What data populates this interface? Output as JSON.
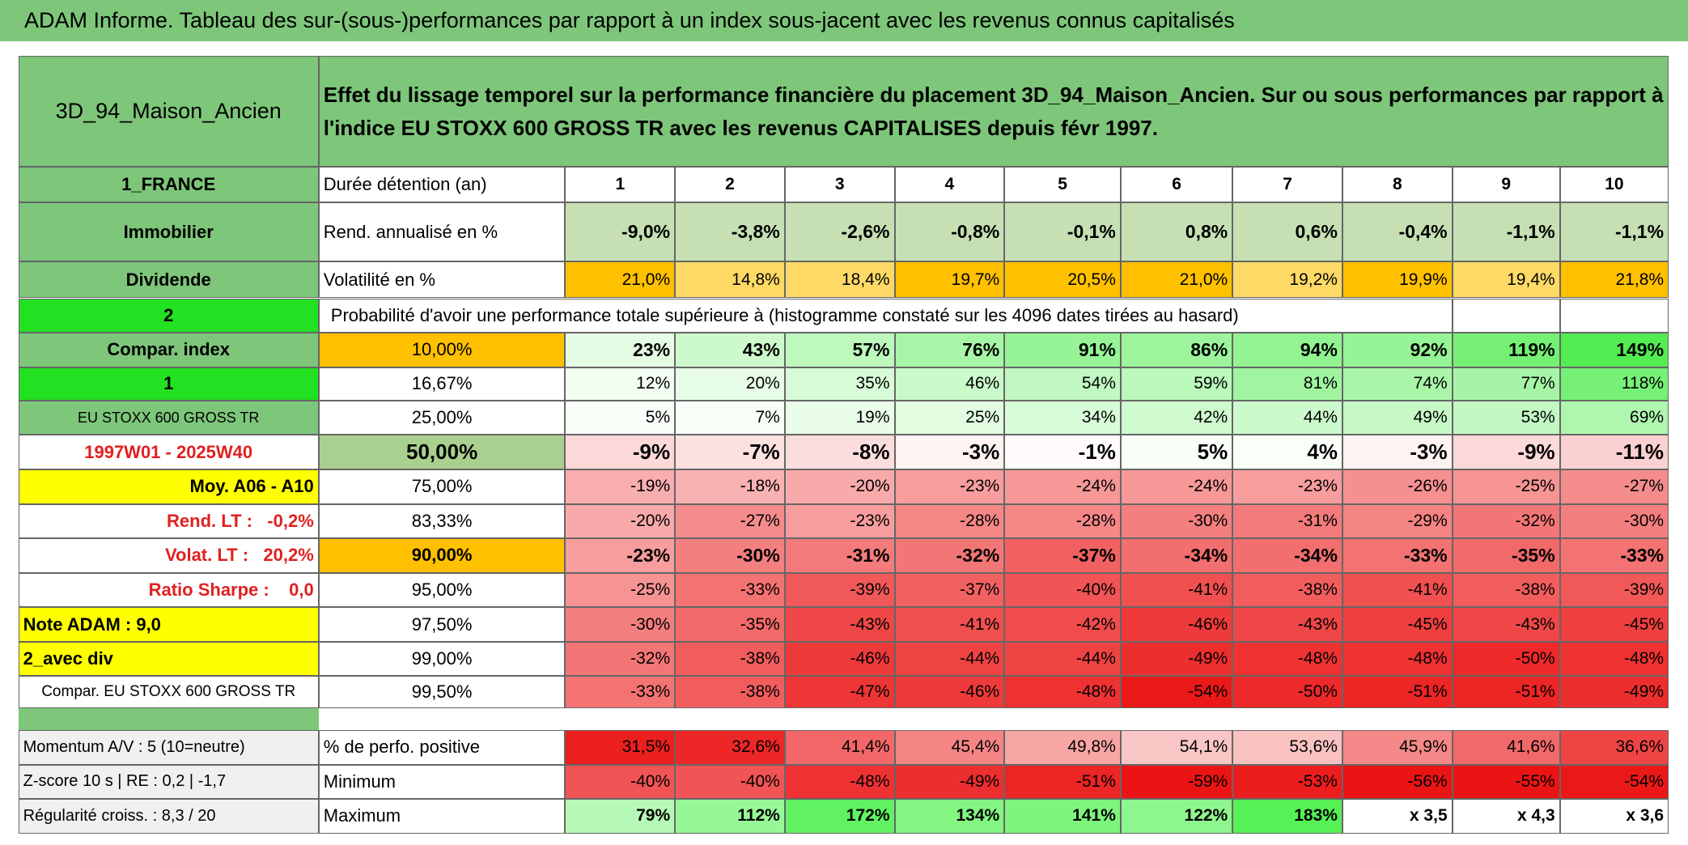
{
  "title": "ADAM Informe. Tableau des sur-(sous-)performances par rapport à un index sous-jacent avec les revenus connus capitalisés",
  "header": {
    "fund": "3D_94_Maison_Ancien",
    "description": "Effet du lissage temporel sur la performance financière du placement 3D_94_Maison_Ancien. Sur ou sous performances par rapport à l'indice EU STOXX 600 GROSS TR avec les revenus CAPITALISES depuis févr 1997."
  },
  "rows": [
    {
      "side": "1_FRANCE",
      "label": "Durée détention (an)",
      "cells": [
        "1",
        "2",
        "3",
        "4",
        "5",
        "6",
        "7",
        "8",
        "9",
        "10"
      ]
    },
    {
      "side": "Immobilier",
      "label": "Rend. annualisé en %",
      "cells": [
        "-9,0%",
        "-3,8%",
        "-2,6%",
        "-0,8%",
        "-0,1%",
        "0,8%",
        "0,6%",
        "-0,4%",
        "-1,1%",
        "-1,1%"
      ]
    },
    {
      "side": "Dividende",
      "label": "Volatilité en %",
      "cells": [
        "21,0%",
        "14,8%",
        "18,4%",
        "19,7%",
        "20,5%",
        "21,0%",
        "19,2%",
        "19,9%",
        "19,4%",
        "21,8%"
      ]
    },
    {
      "side": "2",
      "label": "Probabilité d'avoir une performance totale supérieure à (histogramme constaté sur les 4096 dates tirées au hasard)",
      "cells": []
    },
    {
      "side": "Compar. index",
      "label": "10,00%",
      "cells": [
        "23%",
        "43%",
        "57%",
        "76%",
        "91%",
        "86%",
        "94%",
        "92%",
        "119%",
        "149%"
      ]
    },
    {
      "side": "1",
      "label": "16,67%",
      "cells": [
        "12%",
        "20%",
        "35%",
        "46%",
        "54%",
        "59%",
        "81%",
        "74%",
        "77%",
        "118%"
      ]
    },
    {
      "side": "EU STOXX 600 GROSS TR",
      "label": "25,00%",
      "cells": [
        "5%",
        "7%",
        "19%",
        "25%",
        "34%",
        "42%",
        "44%",
        "49%",
        "53%",
        "69%"
      ]
    },
    {
      "side": "1997W01 - 2025W40",
      "label": "50,00%",
      "cells": [
        "-9%",
        "-7%",
        "-8%",
        "-3%",
        "-1%",
        "5%",
        "4%",
        "-3%",
        "-9%",
        "-11%"
      ]
    },
    {
      "side": "Moy. A06 - A10",
      "label": "75,00%",
      "cells": [
        "-19%",
        "-18%",
        "-20%",
        "-23%",
        "-24%",
        "-24%",
        "-23%",
        "-26%",
        "-25%",
        "-27%"
      ]
    },
    {
      "side": "Rend. LT :   -0,2%",
      "label": "83,33%",
      "cells": [
        "-20%",
        "-27%",
        "-23%",
        "-28%",
        "-28%",
        "-30%",
        "-31%",
        "-29%",
        "-32%",
        "-30%"
      ]
    },
    {
      "side": "Volat. LT :   20,2%",
      "label": "90,00%",
      "cells": [
        "-23%",
        "-30%",
        "-31%",
        "-32%",
        "-37%",
        "-34%",
        "-34%",
        "-33%",
        "-35%",
        "-33%"
      ]
    },
    {
      "side": "Ratio Sharpe :    0,0",
      "label": "95,00%",
      "cells": [
        "-25%",
        "-33%",
        "-39%",
        "-37%",
        "-40%",
        "-41%",
        "-38%",
        "-41%",
        "-38%",
        "-39%"
      ]
    },
    {
      "side": "Note ADAM : 9,0",
      "label": "97,50%",
      "cells": [
        "-30%",
        "-35%",
        "-43%",
        "-41%",
        "-42%",
        "-46%",
        "-43%",
        "-45%",
        "-43%",
        "-45%"
      ]
    },
    {
      "side": "2_avec div",
      "label": "99,00%",
      "cells": [
        "-32%",
        "-38%",
        "-46%",
        "-44%",
        "-44%",
        "-49%",
        "-48%",
        "-48%",
        "-50%",
        "-48%"
      ]
    },
    {
      "side": "Compar. EU STOXX 600 GROSS TR",
      "label": "99,50%",
      "cells": [
        "-33%",
        "-38%",
        "-47%",
        "-46%",
        "-48%",
        "-54%",
        "-50%",
        "-51%",
        "-51%",
        "-49%"
      ]
    },
    {
      "side": "Momentum A/V : 5 (10=neutre)",
      "label": "% de perfo. positive",
      "cells": [
        "31,5%",
        "32,6%",
        "41,4%",
        "45,4%",
        "49,8%",
        "54,1%",
        "53,6%",
        "45,9%",
        "41,6%",
        "36,6%"
      ]
    },
    {
      "side": "Z-score 10 s | RE : 0,2 | -1,7",
      "label": "Minimum",
      "cells": [
        "-40%",
        "-40%",
        "-48%",
        "-49%",
        "-51%",
        "-59%",
        "-53%",
        "-56%",
        "-55%",
        "-54%"
      ]
    },
    {
      "side": "Régularité croiss. : 8,3 / 20",
      "label": "Maximum",
      "cells": [
        "79%",
        "112%",
        "172%",
        "134%",
        "141%",
        "122%",
        "183%",
        "x 3,5",
        "x 4,3",
        "x 3,6"
      ]
    }
  ]
}
